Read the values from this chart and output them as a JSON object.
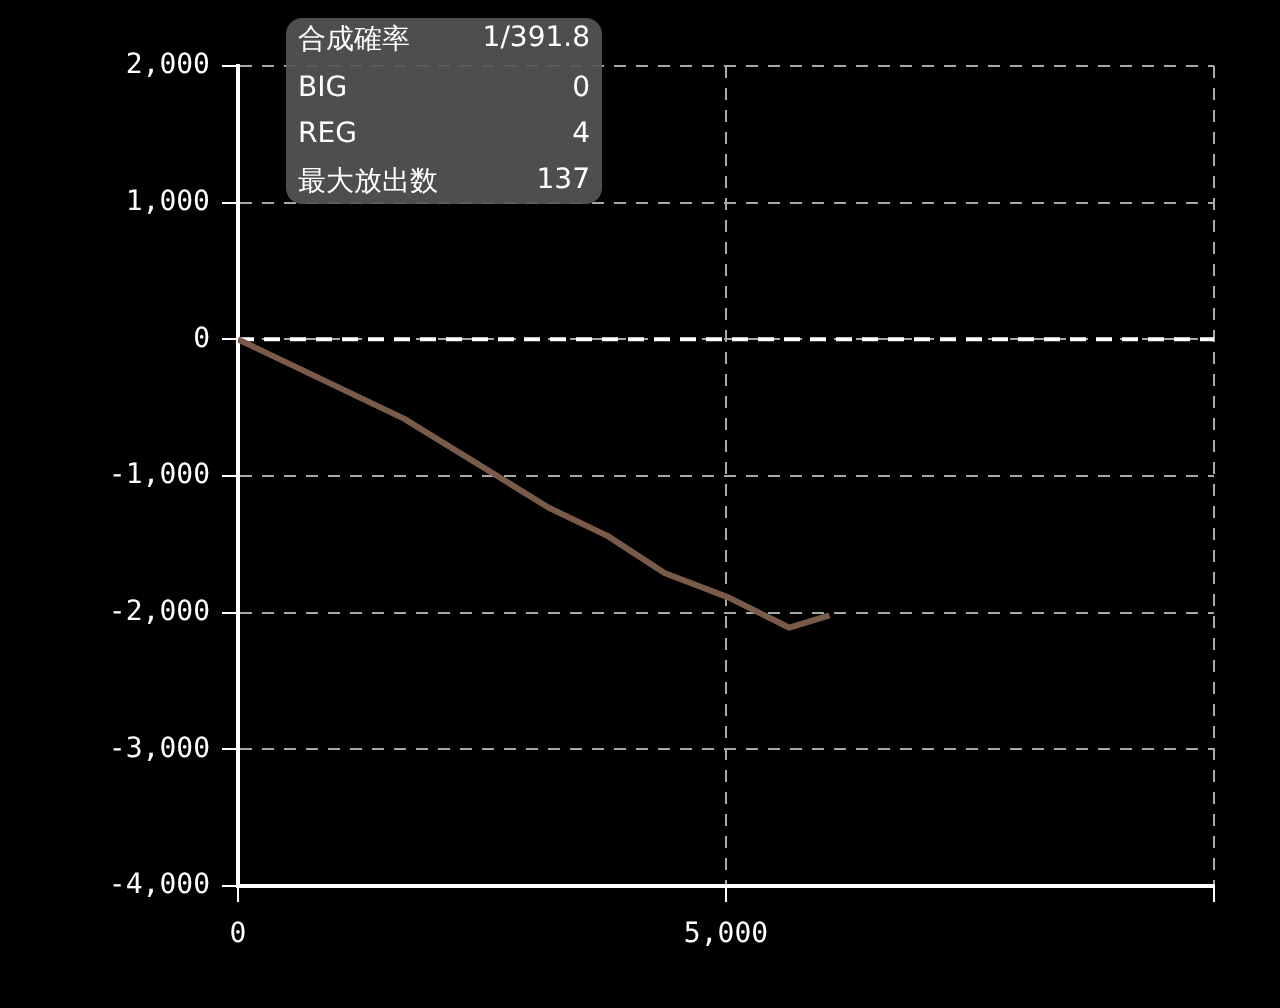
{
  "chart_data": {
    "type": "line",
    "x": [
      0,
      1700,
      3180,
      3790,
      4370,
      5030,
      5650,
      6060
    ],
    "series": [
      {
        "color": "#7a5a48",
        "values": [
          0,
          -580,
          -1230,
          -1440,
          -1710,
          -1890,
          -2110,
          -2020
        ]
      }
    ],
    "xlim": [
      0,
      10000
    ],
    "xticks": [
      {
        "value": 0,
        "label": "0"
      },
      {
        "value": 5000,
        "label": "5,000"
      },
      {
        "value": 10000,
        "label": null
      }
    ],
    "ylim": [
      -4000,
      2000
    ],
    "yticks": [
      {
        "value": -4000,
        "label": "-4,000"
      },
      {
        "value": -3000,
        "label": "-3,000"
      },
      {
        "value": -2000,
        "label": "-2,000"
      },
      {
        "value": -1000,
        "label": "-1,000"
      },
      {
        "value": 0,
        "label": "0"
      },
      {
        "value": 1000,
        "label": "1,000"
      },
      {
        "value": 2000,
        "label": "2,000"
      }
    ],
    "ref_lines": [
      {
        "axis": "y",
        "value": 0,
        "color": "#ffffff",
        "line_style": "dashed"
      }
    ],
    "grid": true,
    "legend": false,
    "marker": "none",
    "line_style": "solid",
    "annotations": [
      "合成確率",
      "1/391.8",
      "BIG",
      "0",
      "REG",
      "4",
      "最大放出数",
      "137"
    ]
  }
}
